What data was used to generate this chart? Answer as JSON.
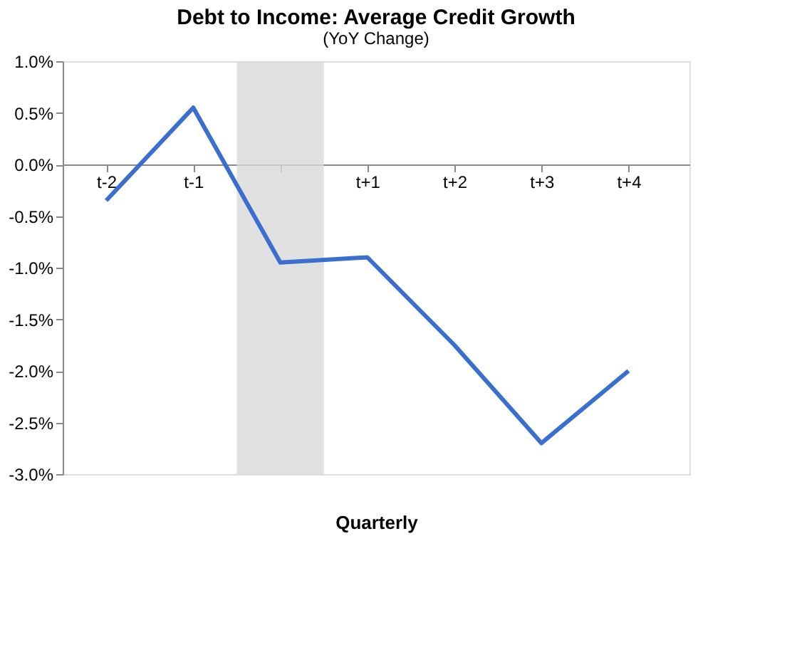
{
  "chart_data": {
    "type": "line",
    "title": "Debt to Income: Average Credit Growth",
    "subtitle": "(YoY Change)",
    "xlabel": "Quarterly",
    "categories": [
      "t-2",
      "t-1",
      null,
      "t+1",
      "t+2",
      "t+3",
      "t+4"
    ],
    "series": [
      {
        "color": "#3a6fd0",
        "values": [
          -0.35,
          0.55,
          -0.95,
          -0.9,
          -1.75,
          -2.7,
          -2.0
        ]
      }
    ],
    "ylim": [
      -3.0,
      1.0
    ],
    "yticks": [
      {
        "value": 1.0,
        "label": "1.0%"
      },
      {
        "value": 0.5,
        "label": "0.5%"
      },
      {
        "value": 0.0,
        "label": "0.0%"
      },
      {
        "value": -0.5,
        "label": "-0.5%"
      },
      {
        "value": -1.0,
        "label": "-1.0%"
      },
      {
        "value": -1.5,
        "label": "-1.5%"
      },
      {
        "value": -2.0,
        "label": "-2.0%"
      },
      {
        "value": -2.5,
        "label": "-2.5%"
      },
      {
        "value": -3.0,
        "label": "-3.0%"
      }
    ],
    "bands": [
      {
        "axis": "x",
        "from": "t-1",
        "to": "t+1",
        "color": "#d9d9d9"
      }
    ],
    "grid": false,
    "marker": "none",
    "line_style": "solid"
  }
}
